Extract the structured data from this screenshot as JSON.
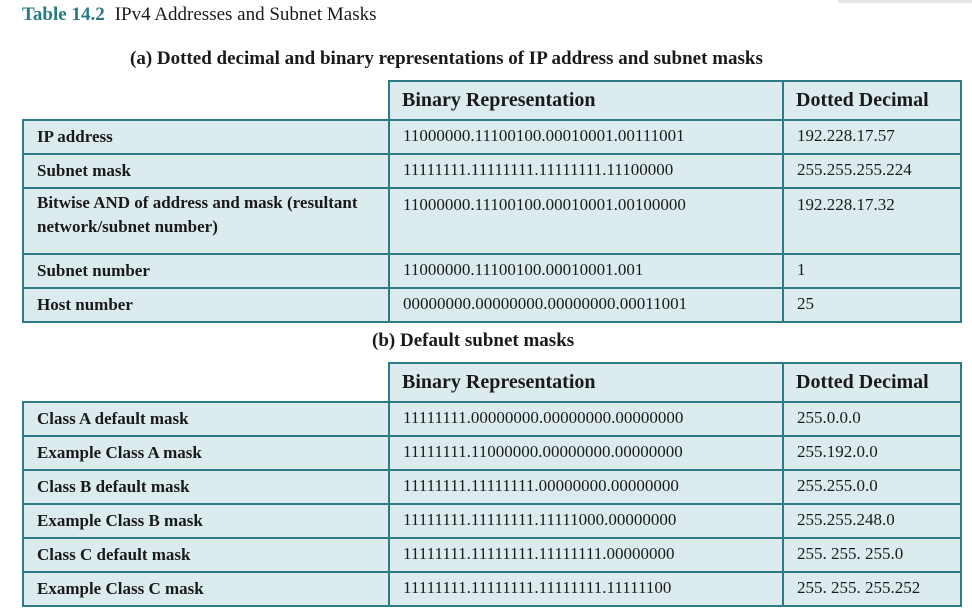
{
  "caption": {
    "number": "Table 14.2",
    "title": "IPv4 Addresses and Subnet Masks"
  },
  "section_a": {
    "title": "(a) Dotted decimal and binary representations of IP address and subnet masks",
    "headers": {
      "binary": "Binary Representation",
      "decimal": "Dotted Decimal"
    },
    "rows": [
      {
        "label": "IP address",
        "binary": "11000000.11100100.00010001.00111001",
        "decimal": "192.228.17.57"
      },
      {
        "label": "Subnet mask",
        "binary": "11111111.11111111.11111111.11100000",
        "decimal": "255.255.255.224"
      },
      {
        "label": "Bitwise AND of address and mask (resultant network/subnet number)",
        "binary": "11000000.11100100.00010001.00100000",
        "decimal": "192.228.17.32"
      },
      {
        "label": "Subnet number",
        "binary": "11000000.11100100.00010001.001",
        "decimal": "1"
      },
      {
        "label": "Host number",
        "binary": "00000000.00000000.00000000.00011001",
        "decimal": "25"
      }
    ]
  },
  "section_b": {
    "title": "(b) Default subnet masks",
    "headers": {
      "binary": "Binary Representation",
      "decimal": "Dotted Decimal"
    },
    "rows": [
      {
        "label": "Class A default mask",
        "binary": "11111111.00000000.00000000.00000000",
        "decimal": "255.0.0.0"
      },
      {
        "label": "Example Class A mask",
        "binary": "11111111.11000000.00000000.00000000",
        "decimal": "255.192.0.0"
      },
      {
        "label": "Class B default mask",
        "binary": "11111111.11111111.00000000.00000000",
        "decimal": "255.255.0.0"
      },
      {
        "label": "Example Class B mask",
        "binary": "11111111.11111111.11111000.00000000",
        "decimal": "255.255.248.0"
      },
      {
        "label": "Class C default mask",
        "binary": "11111111.11111111.11111111.00000000",
        "decimal": "255. 255. 255.0"
      },
      {
        "label": "Example Class C mask",
        "binary": "11111111.11111111.11111111.11111100",
        "decimal": "255. 255. 255.252"
      }
    ]
  }
}
